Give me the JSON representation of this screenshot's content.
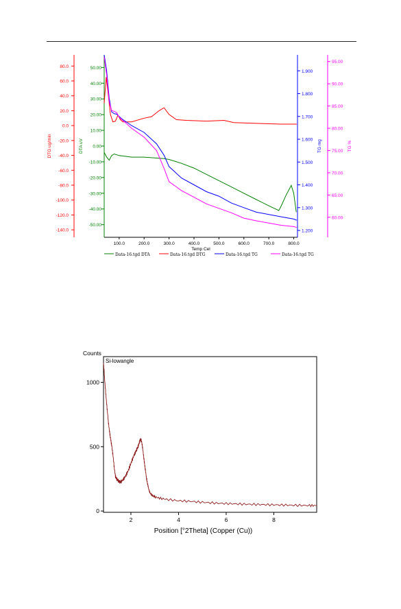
{
  "chart_data": [
    {
      "type": "line",
      "xlabel": "Temp Cel",
      "x_ticks": [
        "100.0",
        "200.0",
        "300.0",
        "400.0",
        "500.0",
        "600.0",
        "700.0",
        "800.0"
      ],
      "xlim": [
        40,
        815
      ],
      "axes": [
        {
          "id": "dtg",
          "label": "DTG ug/min",
          "color": "#ff0000",
          "ylim": [
            -150,
            95
          ],
          "ticks": [
            "80.0",
            "60.0",
            "40.0",
            "20.0",
            "0.0",
            "-20.0",
            "-40.0",
            "-60.0",
            "-80.0",
            "-100.0",
            "-120.0",
            "-140.0"
          ]
        },
        {
          "id": "dta",
          "label": "DTA uV",
          "color": "#008000",
          "ylim": [
            -58,
            58
          ],
          "ticks": [
            "50.00",
            "40.00",
            "30.00",
            "20.00",
            "10.00",
            "0.00",
            "-10.00",
            "-20.00",
            "-30.00",
            "-40.00",
            "-50.00"
          ]
        },
        {
          "id": "tgmg",
          "label": "TG mg",
          "color": "#0000ff",
          "ylim": [
            1.17,
            1.97
          ],
          "ticks": [
            "1.900",
            "1.800",
            "1.700",
            "1.600",
            "1.500",
            "1.400",
            "1.300",
            "1.200"
          ]
        },
        {
          "id": "tgpct",
          "label": "TG %",
          "color": "#ff00ff",
          "ylim": [
            55.5,
            96.5
          ],
          "ticks": [
            "95.00",
            "90.00",
            "85.00",
            "80.00",
            "75.00",
            "70.00",
            "65.00",
            "60.00"
          ]
        }
      ],
      "series": [
        {
          "name": "Data-16.tgd DTA",
          "axis": "dta",
          "color": "#008000",
          "x": [
            40,
            50,
            60,
            70,
            80,
            100,
            150,
            200,
            280,
            300,
            350,
            400,
            450,
            500,
            550,
            600,
            650,
            700,
            740,
            750,
            770,
            790,
            800,
            810
          ],
          "y": [
            -4,
            -7,
            -9,
            -6,
            -5,
            -6,
            -7,
            -7,
            -8,
            -8.5,
            -11,
            -14,
            -18,
            -22,
            -26,
            -30,
            -34,
            -38,
            -41,
            -38,
            -31,
            -25,
            -30,
            -42
          ]
        },
        {
          "name": "Data-16.tgd DTG",
          "axis": "dtg",
          "color": "#ff0000",
          "x": [
            40,
            48,
            55,
            65,
            75,
            85,
            95,
            105,
            115,
            150,
            200,
            230,
            260,
            280,
            300,
            330,
            370,
            450,
            520,
            560,
            650,
            750,
            812
          ],
          "y": [
            30,
            65,
            45,
            15,
            5,
            6,
            14,
            8,
            5,
            5,
            10,
            12,
            20,
            24,
            15,
            8,
            7,
            6,
            7,
            4,
            3,
            2,
            2
          ]
        },
        {
          "name": "Data-16.tgd TG",
          "axis": "tgmg",
          "color": "#0000ff",
          "x": [
            40,
            50,
            60,
            70,
            80,
            90,
            100,
            110,
            150,
            200,
            250,
            280,
            300,
            350,
            400,
            450,
            500,
            550,
            600,
            650,
            700,
            750,
            800,
            812
          ],
          "y": [
            1.97,
            1.9,
            1.78,
            1.72,
            1.712,
            1.71,
            1.7,
            1.69,
            1.66,
            1.63,
            1.58,
            1.53,
            1.48,
            1.43,
            1.4,
            1.37,
            1.35,
            1.32,
            1.3,
            1.28,
            1.27,
            1.26,
            1.25,
            1.245
          ]
        },
        {
          "name": "Data-16.tgd TG",
          "axis": "tgpct",
          "color": "#ff00ff",
          "x": [
            40,
            50,
            60,
            70,
            80,
            90,
            100,
            120,
            150,
            200,
            250,
            280,
            300,
            350,
            400,
            450,
            500,
            550,
            600,
            650,
            700,
            750,
            800,
            812
          ],
          "y": [
            96,
            92,
            86,
            84,
            83.8,
            83.5,
            82.5,
            81.5,
            80,
            78,
            75,
            71,
            68,
            66,
            64.5,
            63,
            62,
            61,
            59.8,
            59.2,
            58.7,
            58.2,
            57.9,
            57.7
          ]
        }
      ]
    },
    {
      "type": "line",
      "title": "Si-lowangle",
      "xlabel": "Position [°2Theta] (Copper (Cu))",
      "ylabel": "Counts",
      "xlim": [
        0.85,
        9.8
      ],
      "ylim": [
        -10,
        1200
      ],
      "x_ticks": [
        "2",
        "4",
        "6",
        "8"
      ],
      "y_ticks": [
        "0",
        "500",
        "1000"
      ],
      "series": [
        {
          "name": "Si-lowangle",
          "color": "#8b1a1a",
          "x": [
            0.85,
            0.9,
            0.95,
            1.0,
            1.05,
            1.1,
            1.15,
            1.2,
            1.25,
            1.3,
            1.35,
            1.4,
            1.45,
            1.5,
            1.55,
            1.6,
            1.7,
            1.8,
            1.9,
            2.0,
            2.1,
            2.2,
            2.25,
            2.3,
            2.35,
            2.4,
            2.45,
            2.5,
            2.55,
            2.6,
            2.65,
            2.7,
            2.75,
            2.8,
            2.9,
            3.0,
            3.2,
            3.5,
            4.0,
            4.5,
            5.0,
            5.5,
            6.0,
            6.5,
            7.0,
            7.5,
            8.0,
            8.5,
            9.0,
            9.5,
            9.8
          ],
          "y": [
            1150,
            1020,
            900,
            800,
            700,
            620,
            560,
            500,
            430,
            340,
            270,
            250,
            240,
            230,
            225,
            230,
            250,
            280,
            320,
            370,
            420,
            460,
            480,
            500,
            530,
            560,
            540,
            480,
            400,
            330,
            260,
            210,
            170,
            140,
            120,
            110,
            100,
            90,
            80,
            75,
            68,
            62,
            58,
            55,
            52,
            50,
            48,
            46,
            44,
            43,
            42
          ]
        }
      ]
    }
  ]
}
